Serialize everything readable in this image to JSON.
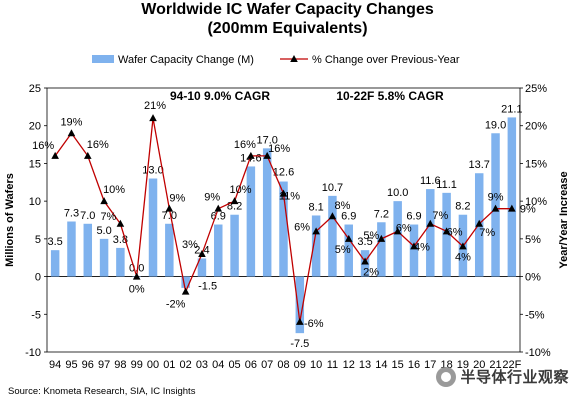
{
  "title_line1": "Worldwide IC Wafer Capacity Changes",
  "title_line2": "(200mm Equivalents)",
  "source": "Source: Knometa Research, SIA, IC Insights",
  "watermark": "半导体行业观察",
  "chart_data": {
    "type": "bar+line",
    "categories": [
      "94",
      "95",
      "96",
      "97",
      "98",
      "99",
      "00",
      "01",
      "02",
      "03",
      "04",
      "05",
      "06",
      "07",
      "08",
      "09",
      "10",
      "11",
      "12",
      "13",
      "14",
      "15",
      "16",
      "17",
      "18",
      "19",
      "20",
      "21",
      "22F"
    ],
    "series": [
      {
        "name": "Wafer Capacity Change (M)",
        "type": "bar",
        "axis": "left",
        "values": [
          3.5,
          7.3,
          7.0,
          5.0,
          3.8,
          0.0,
          13.0,
          7.0,
          -1.5,
          2.4,
          6.9,
          8.2,
          14.6,
          17.0,
          12.6,
          -7.5,
          8.1,
          10.7,
          6.9,
          3.5,
          7.2,
          10.0,
          6.9,
          11.6,
          11.1,
          8.2,
          13.7,
          19.0,
          21.1
        ],
        "labels": [
          "3.5",
          "7.3",
          "7.0",
          "5.0",
          "3.8",
          "0.0",
          "13.0",
          "7.0",
          "-1.5",
          "2.4",
          "6.9",
          "8.2",
          "14.6",
          "17.0",
          "12.6",
          "-7.5",
          "8.1",
          "10.7",
          "6.9",
          "3.5",
          "7.2",
          "10.0",
          "6.9",
          "11.6",
          "11.1",
          "8.2",
          "13.7",
          "19.0",
          "21.1"
        ]
      },
      {
        "name": "% Change over Previous-Year",
        "type": "line",
        "axis": "right",
        "values": [
          16,
          19,
          16,
          10,
          7,
          0,
          21,
          9,
          -2,
          3,
          9,
          10,
          16,
          16,
          11,
          -6,
          6,
          8,
          5,
          2,
          5,
          6,
          4,
          7,
          6,
          4,
          7,
          9,
          9
        ],
        "labels": [
          "16%",
          "19%",
          "16%",
          "10%",
          "7%",
          "0%",
          "21%",
          "9%",
          "-2%",
          "3%",
          "9%",
          "10%",
          "16%",
          "16%",
          "11%",
          "-6%",
          "6%",
          "8%",
          "5%",
          "2%",
          "5%",
          "6%",
          "4%",
          "7%",
          "6%",
          "4%",
          "7%",
          "9%",
          "9%"
        ]
      }
    ],
    "ylabel": "Millions of Wafers",
    "y2label": "Year/Year Increase",
    "ylim": [
      -10,
      25
    ],
    "y2lim": [
      -10,
      25
    ],
    "yticks": [
      "-10",
      "-5",
      "0",
      "5",
      "10",
      "15",
      "20",
      "25"
    ],
    "y2ticks": [
      "-10%",
      "-5%",
      "0%",
      "5%",
      "10%",
      "15%",
      "20%",
      "25%"
    ],
    "grid": false,
    "legend": "top",
    "annotations": [
      "94-10 9.0% CAGR",
      "10-22F 5.8% CAGR"
    ],
    "colors": {
      "bar": "#7fb2ee",
      "line": "#c00000",
      "marker": "#000000"
    }
  }
}
